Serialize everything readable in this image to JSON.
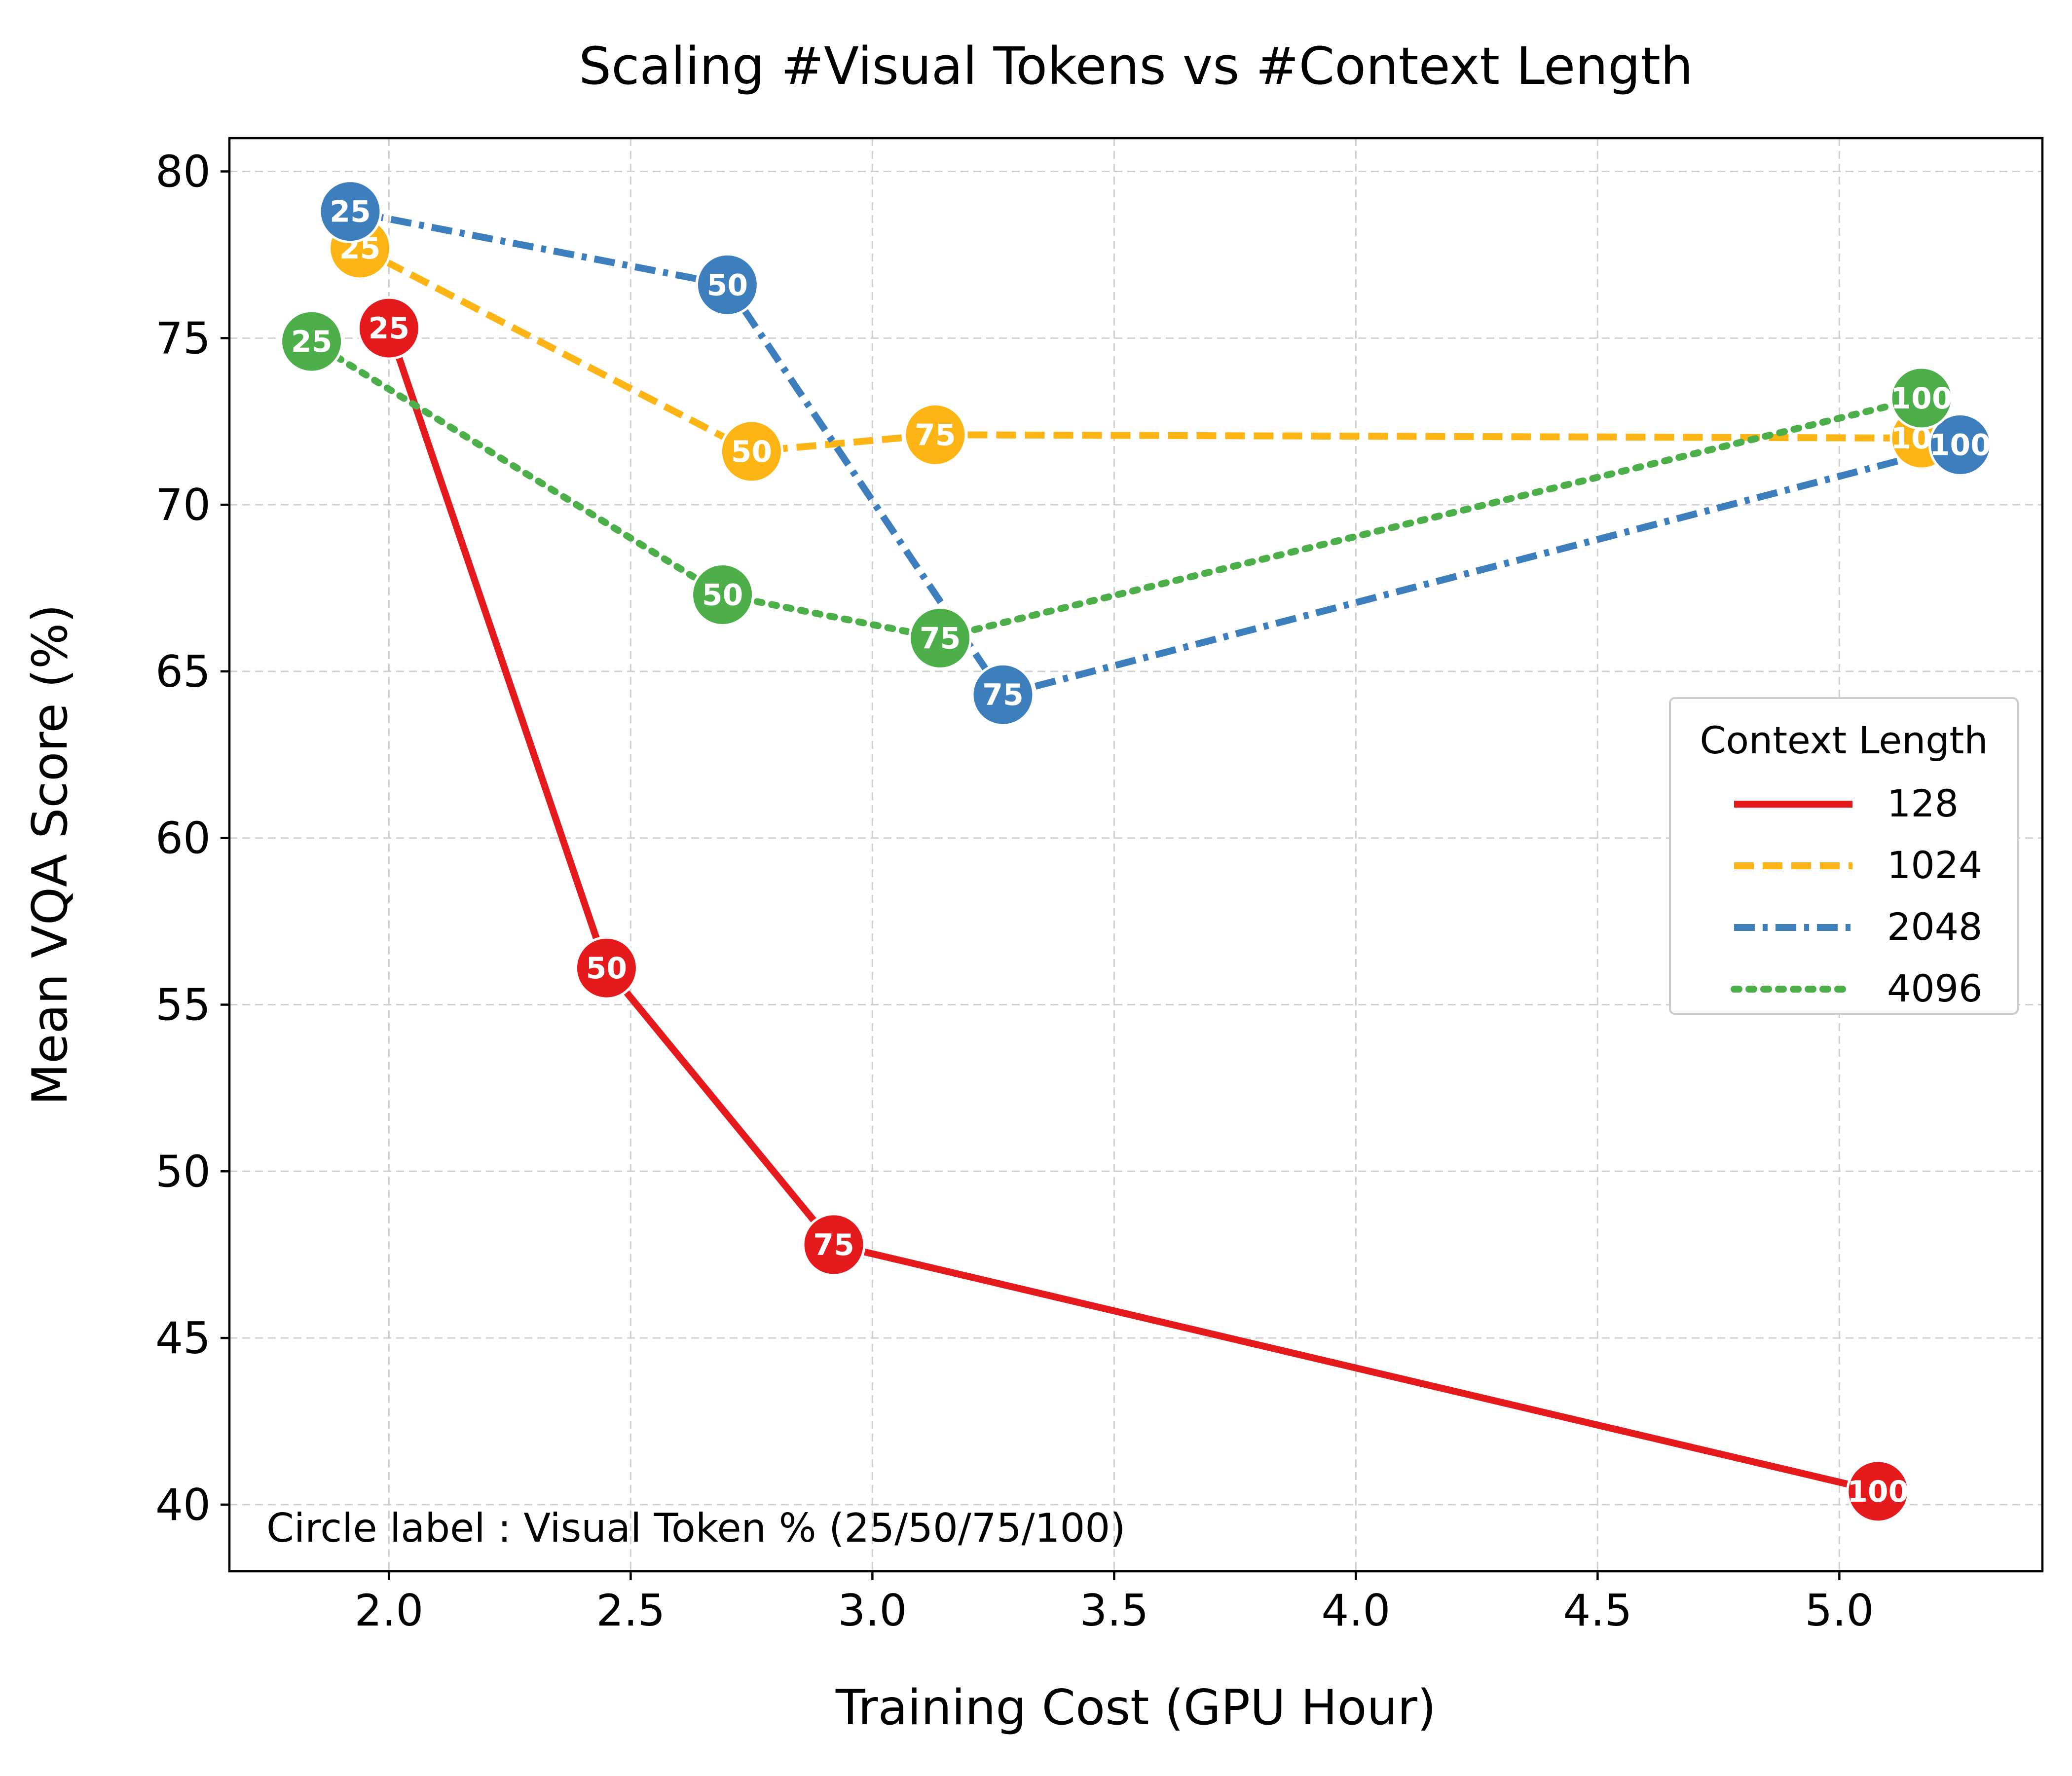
{
  "chart_data": {
    "type": "line",
    "title": "Scaling #Visual Tokens vs #Context Length",
    "xlabel": "Training Cost (GPU Hour)",
    "ylabel": "Mean VQA Score (%)",
    "xlim": [
      1.67,
      5.42
    ],
    "ylim": [
      38,
      81
    ],
    "xticks": [
      2.0,
      2.5,
      3.0,
      3.5,
      4.0,
      4.5,
      5.0
    ],
    "xtick_labels": [
      "2.0",
      "2.5",
      "3.0",
      "3.5",
      "4.0",
      "4.5",
      "5.0"
    ],
    "yticks": [
      40,
      45,
      50,
      55,
      60,
      65,
      70,
      75,
      80
    ],
    "ytick_labels": [
      "40",
      "45",
      "50",
      "55",
      "60",
      "65",
      "70",
      "75",
      "80"
    ],
    "grid": true,
    "legend_title": "Context Length",
    "legend_position": "right",
    "annotation": "Circle label : Visual Token % (25/50/75/100)",
    "series": [
      {
        "name": "128",
        "color": "#e41a1c",
        "line_style": "solid",
        "points": [
          {
            "x": 2.0,
            "y": 75.3,
            "label": "25"
          },
          {
            "x": 2.45,
            "y": 56.1,
            "label": "50"
          },
          {
            "x": 2.92,
            "y": 47.8,
            "label": "75"
          },
          {
            "x": 5.08,
            "y": 40.4,
            "label": "100"
          }
        ]
      },
      {
        "name": "1024",
        "color": "#fdb515",
        "line_style": "dashed",
        "points": [
          {
            "x": 1.94,
            "y": 77.7,
            "label": "25"
          },
          {
            "x": 2.75,
            "y": 71.6,
            "label": "50"
          },
          {
            "x": 3.13,
            "y": 72.1,
            "label": "75"
          },
          {
            "x": 5.17,
            "y": 72.0,
            "label": "100"
          }
        ]
      },
      {
        "name": "2048",
        "color": "#3d7fbd",
        "line_style": "dashdot",
        "points": [
          {
            "x": 1.92,
            "y": 78.8,
            "label": "25"
          },
          {
            "x": 2.7,
            "y": 76.6,
            "label": "50"
          },
          {
            "x": 3.27,
            "y": 64.3,
            "label": "75"
          },
          {
            "x": 5.25,
            "y": 71.8,
            "label": "100"
          }
        ]
      },
      {
        "name": "4096",
        "color": "#4daf4a",
        "line_style": "dotted",
        "points": [
          {
            "x": 1.84,
            "y": 74.9,
            "label": "25"
          },
          {
            "x": 2.69,
            "y": 67.3,
            "label": "50"
          },
          {
            "x": 3.14,
            "y": 66.0,
            "label": "75"
          },
          {
            "x": 5.17,
            "y": 73.2,
            "label": "100"
          }
        ]
      }
    ]
  }
}
